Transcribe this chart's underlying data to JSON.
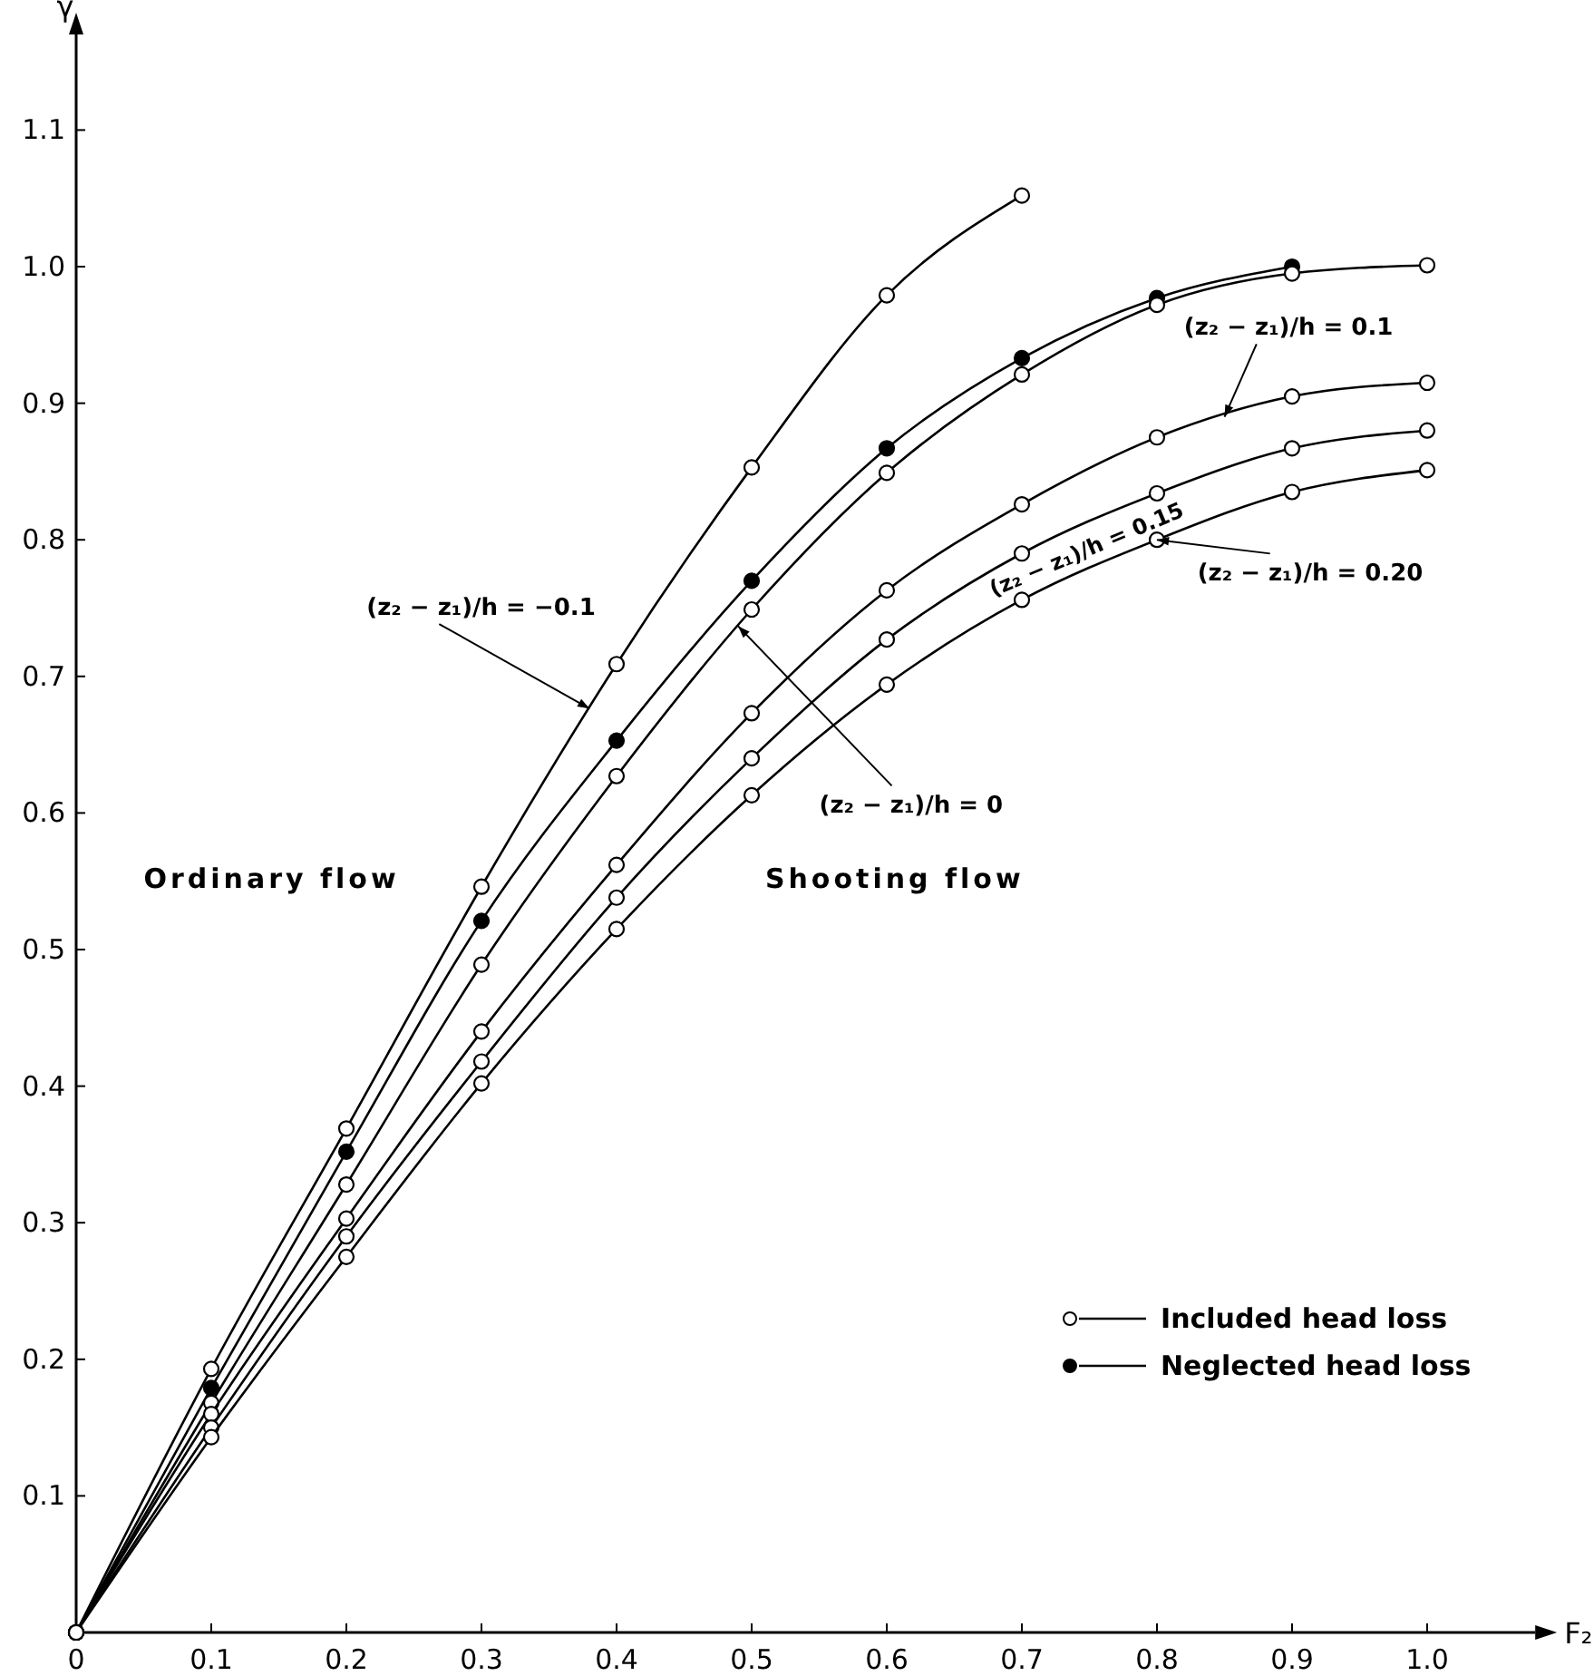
{
  "chart_data": {
    "type": "line",
    "xlabel": "F₂",
    "ylabel": "γ",
    "x": [
      0,
      0.1,
      0.2,
      0.3,
      0.4,
      0.5,
      0.6,
      0.7,
      0.8,
      0.9,
      1.0
    ],
    "xlim": [
      0,
      1.08
    ],
    "ylim": [
      0,
      1.17
    ],
    "xticks": [
      0,
      {
        "value": 0.1,
        "label": "0.1"
      },
      {
        "value": 0.2,
        "label": "0.2"
      },
      {
        "value": 0.3,
        "label": "0.3"
      },
      {
        "value": 0.4,
        "label": "0.4"
      },
      {
        "value": 0.5,
        "label": "0.5"
      },
      {
        "value": 0.6,
        "label": "0.6"
      },
      {
        "value": 0.7,
        "label": "0.7"
      },
      {
        "value": 0.8,
        "label": "0.8"
      },
      {
        "value": 0.9,
        "label": "0.9"
      },
      {
        "value": 1.0,
        "label": "1.0"
      }
    ],
    "yticks": [
      {
        "value": 0.1,
        "label": "0.1"
      },
      {
        "value": 0.2,
        "label": "0.2"
      },
      {
        "value": 0.3,
        "label": "0.3"
      },
      {
        "value": 0.4,
        "label": "0.4"
      },
      {
        "value": 0.5,
        "label": "0.5"
      },
      {
        "value": 0.6,
        "label": "0.6"
      },
      {
        "value": 0.7,
        "label": "0.7"
      },
      {
        "value": 0.8,
        "label": "0.8"
      },
      {
        "value": 0.9,
        "label": "0.9"
      },
      {
        "value": 1.0,
        "label": "1.0"
      },
      {
        "value": 1.1,
        "label": "1.1"
      }
    ],
    "grid": false,
    "legend": "bottom right",
    "marker": "circle",
    "line_style": "solid",
    "series": [
      {
        "name": "(z₂ − z₁)/h = −0.1",
        "color": "#000000",
        "values": [
          0,
          0.193,
          0.369,
          0.546,
          0.709,
          0.853,
          0.979,
          1.052,
          null,
          null,
          null
        ]
      },
      {
        "name": "Neglected head loss",
        "color": "#000000",
        "marker": "circle",
        "values": [
          0,
          0.179,
          0.352,
          0.521,
          0.653,
          0.77,
          0.867,
          0.933,
          0.977,
          1.0,
          null
        ]
      },
      {
        "name": "(z₂ − z₁)/h = 0",
        "color": "#000000",
        "values": [
          0,
          0.168,
          0.328,
          0.489,
          0.627,
          0.749,
          0.849,
          0.921,
          0.972,
          0.995,
          1.001
        ]
      },
      {
        "name": "(z₂ − z₁)/h = 0.1",
        "color": "#000000",
        "values": [
          0,
          0.16,
          0.303,
          0.44,
          0.562,
          0.673,
          0.763,
          0.826,
          0.875,
          0.905,
          0.915
        ]
      },
      {
        "name": "(z₂ − z₁)/h = 0.15",
        "color": "#000000",
        "values": [
          0,
          0.15,
          0.29,
          0.418,
          0.538,
          0.64,
          0.727,
          0.79,
          0.834,
          0.867,
          0.88
        ]
      },
      {
        "name": "(z₂ − z₁)/h = 0.20",
        "color": "#000000",
        "values": [
          0,
          0.143,
          0.275,
          0.402,
          0.515,
          0.613,
          0.694,
          0.756,
          0.8,
          0.835,
          0.851
        ]
      }
    ],
    "annotations": [
      "Ordinary flow",
      "Shooting flow",
      "Included head loss"
    ]
  }
}
